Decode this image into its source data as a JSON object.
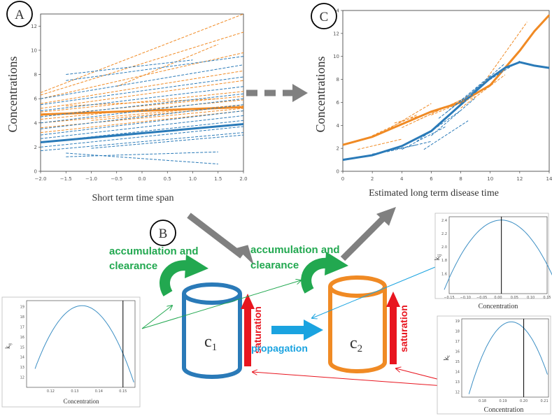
{
  "colors": {
    "blue": "#2a7ab8",
    "orange": "#f08a24",
    "green": "#22a850",
    "red": "#e8151f",
    "cyan": "#1aa3e0",
    "gray": "#808080",
    "axis": "#333333"
  },
  "panel_labels": {
    "a": "A",
    "b": "B",
    "c": "C"
  },
  "diagram": {
    "accum_left": [
      "accumulation and",
      "clearance"
    ],
    "accum_right": [
      "accumulation and",
      "clearance"
    ],
    "c1_main": "c",
    "c1_sub": "1",
    "c2_main": "c",
    "c2_sub": "2",
    "saturation": "saturation",
    "propagation": "propagation"
  },
  "chart_data": [
    {
      "id": "A",
      "type": "line",
      "xlabel": "Short term time span",
      "ylabel": "Concentrations",
      "xlim": [
        -2.0,
        2.0
      ],
      "ylim": [
        0,
        13
      ],
      "xticks": [
        "-2.0",
        "-1.5",
        "-1.0",
        "-0.5",
        "0.0",
        "0.5",
        "1.0",
        "1.5",
        "2.0"
      ],
      "yticks": [
        "0",
        "2",
        "4",
        "6",
        "8",
        "10",
        "12"
      ],
      "series": [
        {
          "values_x": [
            -2,
            2
          ],
          "values_y": [
            6.5,
            13.0
          ],
          "color": "orange"
        },
        {
          "values_x": [
            -2,
            2
          ],
          "values_y": [
            6.3,
            11.5
          ],
          "color": "orange"
        },
        {
          "values_x": [
            -2,
            2
          ],
          "values_y": [
            6.0,
            9.8
          ],
          "color": "orange"
        },
        {
          "values_x": [
            -2,
            2
          ],
          "values_y": [
            5.6,
            8.3
          ],
          "color": "orange"
        },
        {
          "values_x": [
            -2,
            2
          ],
          "values_y": [
            5.2,
            7.5
          ],
          "color": "orange"
        },
        {
          "values_x": [
            -2,
            2
          ],
          "values_y": [
            4.9,
            6.6
          ],
          "color": "orange"
        },
        {
          "values_x": [
            -2,
            2
          ],
          "values_y": [
            4.6,
            6.2
          ],
          "color": "orange"
        },
        {
          "values_x": [
            -2,
            2
          ],
          "values_y": [
            4.3,
            5.9
          ],
          "color": "orange"
        },
        {
          "values_x": [
            -2,
            2
          ],
          "values_y": [
            4.0,
            5.5
          ],
          "color": "orange"
        },
        {
          "values_x": [
            -2,
            2
          ],
          "values_y": [
            3.6,
            5.2
          ],
          "color": "orange"
        },
        {
          "values_x": [
            -2,
            2
          ],
          "values_y": [
            3.2,
            5.0
          ],
          "color": "orange"
        },
        {
          "values_x": [
            -1.5,
            1.5
          ],
          "values_y": [
            5.4,
            6.0
          ],
          "color": "orange"
        },
        {
          "values_x": [
            -1,
            2
          ],
          "values_y": [
            4.2,
            5.4
          ],
          "color": "orange"
        },
        {
          "values_x": [
            -0.5,
            1.5
          ],
          "values_y": [
            7.0,
            10.5
          ],
          "color": "orange"
        },
        {
          "values_x": [
            -2,
            2
          ],
          "values_y": [
            4.7,
            5.3
          ],
          "color": "orange",
          "thick": true
        },
        {
          "values_x": [
            -1.5,
            2
          ],
          "values_y": [
            7.5,
            9.5
          ],
          "color": "blue"
        },
        {
          "values_x": [
            -2,
            2
          ],
          "values_y": [
            6.0,
            8.8
          ],
          "color": "blue"
        },
        {
          "values_x": [
            -2,
            2
          ],
          "values_y": [
            5.5,
            7.8
          ],
          "color": "blue"
        },
        {
          "values_x": [
            -2,
            2
          ],
          "values_y": [
            5.0,
            7.0
          ],
          "color": "blue"
        },
        {
          "values_x": [
            -2,
            2
          ],
          "values_y": [
            4.5,
            6.4
          ],
          "color": "blue"
        },
        {
          "values_x": [
            -2,
            2
          ],
          "values_y": [
            4.0,
            6.0
          ],
          "color": "blue"
        },
        {
          "values_x": [
            -2,
            2
          ],
          "values_y": [
            3.5,
            5.5
          ],
          "color": "blue"
        },
        {
          "values_x": [
            -2,
            2
          ],
          "values_y": [
            3.0,
            5.0
          ],
          "color": "blue"
        },
        {
          "values_x": [
            -2,
            2
          ],
          "values_y": [
            2.7,
            4.6
          ],
          "color": "blue"
        },
        {
          "values_x": [
            -2,
            2
          ],
          "values_y": [
            2.4,
            4.2
          ],
          "color": "blue"
        },
        {
          "values_x": [
            -2,
            2
          ],
          "values_y": [
            2.0,
            3.7
          ],
          "color": "blue"
        },
        {
          "values_x": [
            -2,
            2
          ],
          "values_y": [
            1.7,
            3.2
          ],
          "color": "blue"
        },
        {
          "values_x": [
            -1.5,
            1.5
          ],
          "values_y": [
            1.2,
            1.6
          ],
          "color": "blue"
        },
        {
          "values_x": [
            -1.5,
            1.5
          ],
          "values_y": [
            1.5,
            0.6
          ],
          "color": "blue"
        },
        {
          "values_x": [
            -1,
            2
          ],
          "values_y": [
            1.9,
            3.0
          ],
          "color": "blue"
        },
        {
          "values_x": [
            -1.5,
            1
          ],
          "values_y": [
            8.0,
            9.2
          ],
          "color": "blue"
        },
        {
          "values_x": [
            -2,
            2
          ],
          "values_y": [
            2.4,
            3.9
          ],
          "color": "blue",
          "thick": true
        }
      ]
    },
    {
      "id": "C",
      "type": "line",
      "xlabel": "Estimated long term disease time",
      "ylabel": "Concentrations",
      "xlim": [
        0,
        14
      ],
      "ylim": [
        0,
        14
      ],
      "xticks": [
        "0",
        "2",
        "4",
        "6",
        "8",
        "10",
        "12",
        "14"
      ],
      "yticks": [
        "0",
        "2",
        "4",
        "6",
        "8",
        "10",
        "12",
        "14"
      ],
      "series": [
        {
          "values_x": [
            0,
            2,
            4,
            6,
            8,
            10,
            12,
            13,
            14
          ],
          "values_y": [
            2.3,
            3.0,
            4.1,
            5.2,
            6.0,
            7.5,
            10.5,
            12.2,
            13.6
          ],
          "color": "orange",
          "thick": true
        },
        {
          "values_x": [
            0,
            2,
            4,
            6,
            8,
            10,
            11,
            12,
            13,
            14
          ],
          "values_y": [
            1.0,
            1.4,
            2.2,
            3.5,
            5.8,
            8.1,
            9.0,
            9.5,
            9.2,
            9.0
          ],
          "color": "blue",
          "thick": true
        },
        {
          "values_x": [
            2,
            5
          ],
          "values_y": [
            3.1,
            4.9
          ],
          "color": "orange"
        },
        {
          "values_x": [
            3,
            6
          ],
          "values_y": [
            3.6,
            5.9
          ],
          "color": "orange"
        },
        {
          "values_x": [
            4,
            7
          ],
          "values_y": [
            3.8,
            5.6
          ],
          "color": "orange"
        },
        {
          "values_x": [
            5,
            8
          ],
          "values_y": [
            4.4,
            6.2
          ],
          "color": "orange"
        },
        {
          "values_x": [
            6,
            9
          ],
          "values_y": [
            4.9,
            6.5
          ],
          "color": "orange"
        },
        {
          "values_x": [
            7,
            10
          ],
          "values_y": [
            5.6,
            7.4
          ],
          "color": "orange"
        },
        {
          "values_x": [
            8,
            11
          ],
          "values_y": [
            5.5,
            8.4
          ],
          "color": "orange"
        },
        {
          "values_x": [
            9.5,
            12.5
          ],
          "values_y": [
            7.6,
            13.0
          ],
          "color": "orange"
        },
        {
          "values_x": [
            3.5,
            6.5
          ],
          "values_y": [
            4.2,
            5.3
          ],
          "color": "orange"
        },
        {
          "values_x": [
            1,
            4
          ],
          "values_y": [
            1.9,
            2.8
          ],
          "color": "orange"
        },
        {
          "values_x": [
            2,
            5
          ],
          "values_y": [
            1.5,
            2.3
          ],
          "color": "blue"
        },
        {
          "values_x": [
            3,
            6
          ],
          "values_y": [
            1.7,
            2.6
          ],
          "color": "blue"
        },
        {
          "values_x": [
            4,
            7
          ],
          "values_y": [
            1.9,
            3.9
          ],
          "color": "blue"
        },
        {
          "values_x": [
            5,
            8
          ],
          "values_y": [
            2.6,
            5.3
          ],
          "color": "blue"
        },
        {
          "values_x": [
            6,
            9
          ],
          "values_y": [
            3.1,
            6.4
          ],
          "color": "blue"
        },
        {
          "values_x": [
            6.5,
            9.5
          ],
          "values_y": [
            4.6,
            7.6
          ],
          "color": "blue"
        },
        {
          "values_x": [
            7,
            10
          ],
          "values_y": [
            5.1,
            8.3
          ],
          "color": "blue"
        },
        {
          "values_x": [
            8,
            11
          ],
          "values_y": [
            6.0,
            9.4
          ],
          "color": "blue"
        },
        {
          "values_x": [
            9,
            12
          ],
          "values_y": [
            7.2,
            9.6
          ],
          "color": "blue"
        },
        {
          "values_x": [
            5.5,
            8.5
          ],
          "values_y": [
            1.9,
            4.4
          ],
          "color": "blue"
        }
      ]
    },
    {
      "id": "kij-top-right",
      "type": "line",
      "xlabel": "Concentration",
      "ylabel": "k_ij",
      "xlim": [
        -0.15,
        0.15
      ],
      "ylim": [
        1.3,
        2.45
      ],
      "xticks": [
        "-0.15",
        "-0.10",
        "-0.05",
        "0.00",
        "0.05",
        "0.10",
        "0.15"
      ],
      "yticks": [
        "1.6",
        "1.8",
        "2.0",
        "2.2",
        "2.4"
      ],
      "vline": 0.01,
      "curve": {
        "peak_x": 0.01,
        "peak_y": 2.4,
        "end_y": 1.36,
        "x_from": -0.165,
        "x_to": 0.18
      }
    },
    {
      "id": "kij-bottom-left",
      "type": "line",
      "xlabel": "Concentration",
      "ylabel": "k_ij",
      "xlim": [
        0.11,
        0.155
      ],
      "ylim": [
        11,
        19.6
      ],
      "xticks": [
        "0.12",
        "0.13",
        "0.14",
        "0.15"
      ],
      "yticks": [
        "12",
        "13",
        "14",
        "15",
        "16",
        "17",
        "18",
        "19"
      ],
      "vline": 0.15,
      "curve": {
        "peak_x": 0.133,
        "peak_y": 19.1,
        "end_y": 11.5,
        "x_from": 0.1135,
        "x_to": 0.1545
      }
    },
    {
      "id": "kt-bottom-right",
      "type": "line",
      "xlabel": "Concentration",
      "ylabel": "k_t",
      "xlim": [
        0.17,
        0.212
      ],
      "ylim": [
        11.5,
        19.2
      ],
      "xticks": [
        "0.18",
        "0.19",
        "0.20",
        "0.21"
      ],
      "yticks": [
        "12",
        "13",
        "14",
        "15",
        "16",
        "17",
        "18",
        "19"
      ],
      "vline": 0.2,
      "curve": {
        "peak_x": 0.194,
        "peak_y": 18.9,
        "end_y": 11.8,
        "x_from": 0.1735,
        "x_to": 0.2115
      }
    }
  ]
}
